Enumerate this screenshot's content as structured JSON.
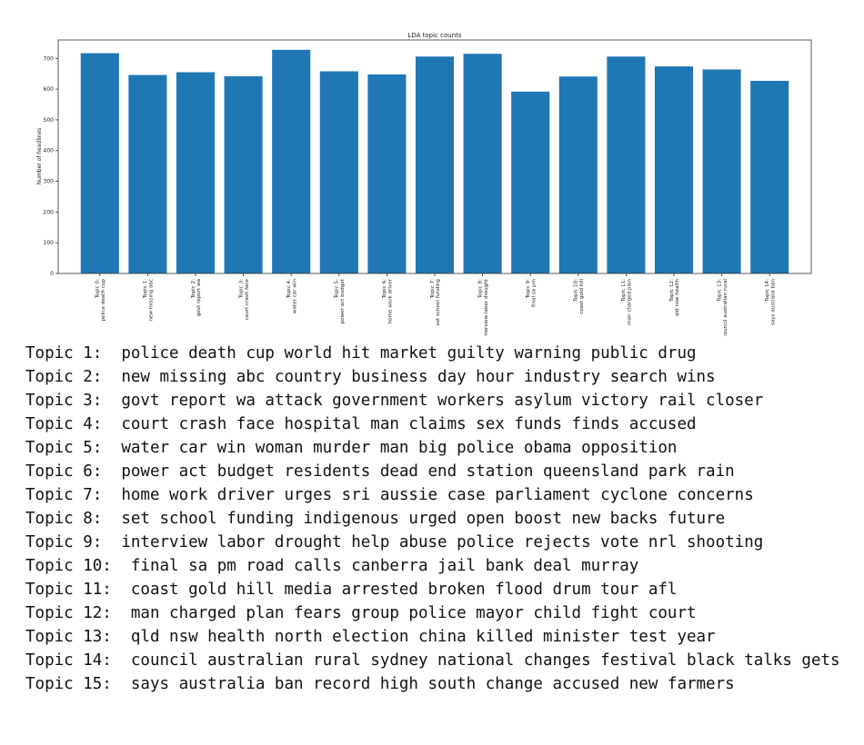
{
  "chart_data": {
    "type": "bar",
    "title": "LDA topic counts",
    "xlabel": "",
    "ylabel": "Number of headlines",
    "ylim": [
      0,
      760
    ],
    "yticks": [
      0,
      100,
      200,
      300,
      400,
      500,
      600,
      700
    ],
    "grid": false,
    "bar_color": "#1f77b4",
    "categories": [
      [
        "Topic 0:",
        "police death cup"
      ],
      [
        "Topic 1:",
        "new missing abc"
      ],
      [
        "Topic 2:",
        "govt report wa"
      ],
      [
        "Topic 3:",
        "court crash face"
      ],
      [
        "Topic 4:",
        "water car win"
      ],
      [
        "Topic 5:",
        "power act budget"
      ],
      [
        "Topic 6:",
        "home work driver"
      ],
      [
        "Topic 7:",
        "set school funding"
      ],
      [
        "Topic 8:",
        "interview labor drought"
      ],
      [
        "Topic 9:",
        "final sa pm"
      ],
      [
        "Topic 10:",
        "coast gold hill"
      ],
      [
        "Topic 11:",
        "man charged plan"
      ],
      [
        "Topic 12:",
        "qld nsw health"
      ],
      [
        "Topic 13:",
        "council australian rural"
      ],
      [
        "Topic 14:",
        "says australia ban"
      ]
    ],
    "values": [
      717,
      646,
      655,
      642,
      728,
      658,
      648,
      706,
      715,
      592,
      641,
      706,
      674,
      664,
      627
    ]
  },
  "topics": [
    "Topic 1:  police death cup world hit market guilty warning public drug",
    "Topic 2:  new missing abc country business day hour industry search wins",
    "Topic 3:  govt report wa attack government workers asylum victory rail closer",
    "Topic 4:  court crash face hospital man claims sex funds finds accused",
    "Topic 5:  water car win woman murder man big police obama opposition",
    "Topic 6:  power act budget residents dead end station queensland park rain",
    "Topic 7:  home work driver urges sri aussie case parliament cyclone concerns",
    "Topic 8:  set school funding indigenous urged open boost new backs future",
    "Topic 9:  interview labor drought help abuse police rejects vote nrl shooting",
    "Topic 10:  final sa pm road calls canberra jail bank deal murray",
    "Topic 11:  coast gold hill media arrested broken flood drum tour afl",
    "Topic 12:  man charged plan fears group police mayor child fight court",
    "Topic 13:  qld nsw health north election china killed minister test year",
    "Topic 14:  council australian rural sydney national changes festival black talks gets",
    "Topic 15:  says australia ban record high south change accused new farmers"
  ]
}
